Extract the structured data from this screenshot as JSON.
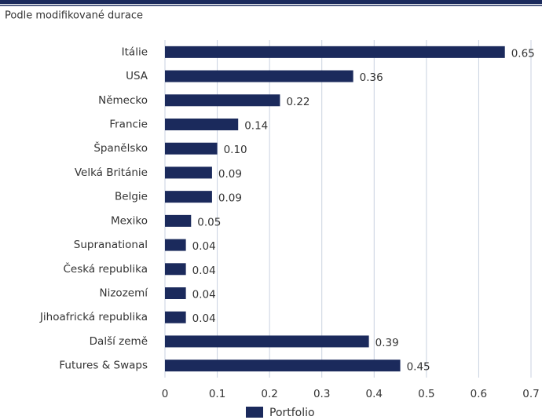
{
  "chart_data": {
    "type": "barh",
    "subtitle": "Podle modifikované durace",
    "categories": [
      "Itálie",
      "USA",
      "Německo",
      "Francie",
      "Španělsko",
      "Velká Británie",
      "Belgie",
      "Mexiko",
      "Supranational",
      "Česká republika",
      "Nizozemí",
      "Jihoafrická republika",
      "Další země",
      "Futures & Swaps"
    ],
    "series": [
      {
        "name": "Portfolio",
        "color": "#1b2a5c",
        "values": [
          0.65,
          0.36,
          0.22,
          0.14,
          0.1,
          0.09,
          0.09,
          0.05,
          0.04,
          0.04,
          0.04,
          0.04,
          0.39,
          0.45
        ],
        "value_labels": [
          "0.65",
          "0.36",
          "0.22",
          "0.14",
          "0.10",
          "0.09",
          "0.09",
          "0.05",
          "0.04",
          "0.04",
          "0.04",
          "0.04",
          "0.39",
          "0.45"
        ]
      }
    ],
    "xlim": [
      0,
      0.7
    ],
    "xticks": [
      0,
      0.1,
      0.2,
      0.3,
      0.4,
      0.5,
      0.6,
      0.7
    ],
    "grid": true,
    "legend": "bottom"
  }
}
